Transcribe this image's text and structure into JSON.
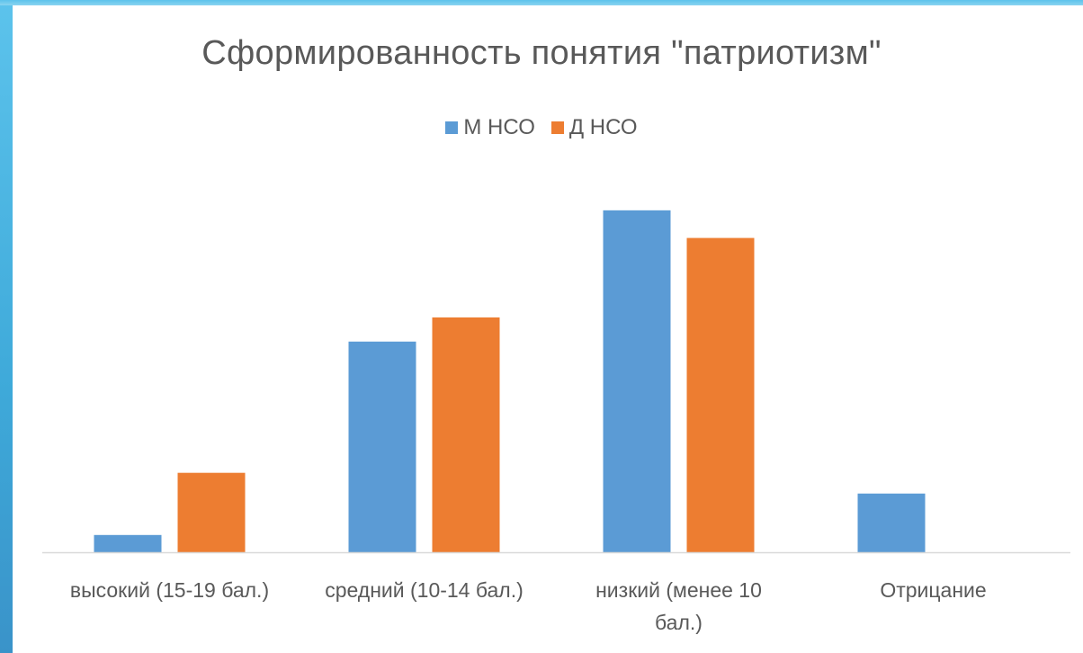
{
  "chart_data": {
    "type": "bar",
    "title": "Сформированность понятия \"патриотизм\"",
    "xlabel": "",
    "ylabel": "",
    "categories": [
      [
        "высокий (15-19 бал.)"
      ],
      [
        "средний (10-14 бал.)"
      ],
      [
        "низкий (менее 10",
        "бал.)"
      ],
      [
        "Отрицание"
      ]
    ],
    "series": [
      {
        "name": "М НСО",
        "color": "#5b9bd5",
        "values": [
          5,
          61,
          99,
          17
        ]
      },
      {
        "name": "Д НСО",
        "color": "#ed7d31",
        "values": [
          23,
          68,
          91,
          0
        ]
      }
    ],
    "ylim": [
      0,
      100
    ],
    "grid": false,
    "legend_position": "top"
  }
}
